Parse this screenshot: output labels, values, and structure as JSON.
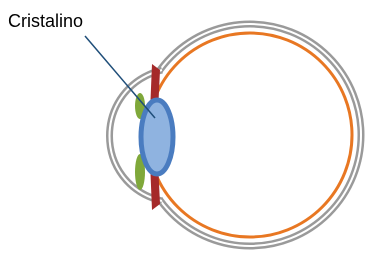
{
  "label": "Cristalino"
}
